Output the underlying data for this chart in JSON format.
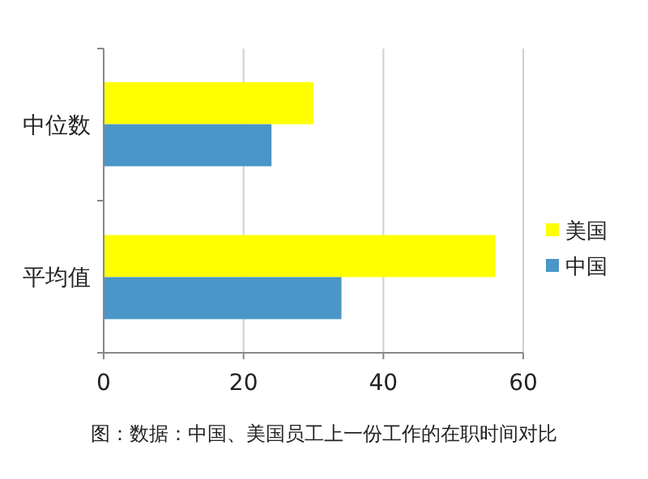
{
  "chart_data": {
    "type": "bar",
    "orientation": "horizontal",
    "categories": [
      "中位数",
      "平均值"
    ],
    "series": [
      {
        "name": "美国",
        "color": "#ffff00",
        "values": [
          30,
          56
        ]
      },
      {
        "name": "中国",
        "color": "#4a96c8",
        "values": [
          24,
          34
        ]
      }
    ],
    "xlim": [
      0,
      60
    ],
    "xticks": [
      0,
      20,
      40,
      60
    ],
    "grid": "x",
    "legend": "right",
    "annotations": [
      "图：数据：中国、美国员工上一份工作的在职时间对比"
    ]
  }
}
